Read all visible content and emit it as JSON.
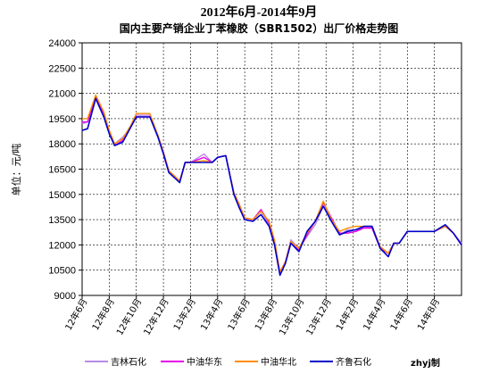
{
  "chart_data": {
    "type": "line",
    "title": "2012年6月-2014年9月",
    "subtitle": "国内主要产销企业丁苯橡胶（SBR1502）出厂价格走势图",
    "ylabel": "单位：元/吨",
    "xlabel": "",
    "ylim": [
      9000,
      24000
    ],
    "y_ticks": [
      24000,
      22500,
      21000,
      19500,
      18000,
      16500,
      15000,
      13500,
      12000,
      10500,
      9000
    ],
    "y_tick_labels": [
      "24000",
      "22500",
      "21000",
      "19500",
      "18000",
      "16500",
      "15000",
      "13500",
      "12000",
      "10500",
      "9000"
    ],
    "x_tick_labels": [
      "12年6月",
      "12年8月",
      "12年10月",
      "12年12月",
      "13年2月",
      "13年4月",
      "13年6月",
      "13年8月",
      "13年10月",
      "13年12月",
      "14年2月",
      "14年4月",
      "14年6月",
      "14年8月"
    ],
    "grid": true,
    "legend_position": "bottom",
    "watermark": "zhyj制",
    "series": [
      {
        "name": "吉林石化",
        "color": "#B88AE8",
        "x": [
          0,
          0.2,
          0.5,
          0.8,
          1.0,
          1.2,
          1.5,
          1.8,
          2.0,
          2.2,
          2.5,
          2.8,
          3.0,
          3.2,
          3.6,
          3.8,
          4.0,
          4.5,
          4.8,
          5.0,
          5.3,
          5.6,
          5.8,
          6.0,
          6.3,
          6.6,
          6.9,
          7.1,
          7.3,
          7.5,
          7.7,
          8.0,
          8.3,
          8.6,
          8.9,
          9.2,
          9.5,
          9.8,
          10.1,
          10.4,
          10.7,
          11.0,
          11.3,
          11.5,
          11.7,
          12.0,
          12.3,
          12.6,
          13.0,
          13.4,
          13.7,
          14.0
        ],
        "values": [
          19200,
          19300,
          20700,
          19800,
          18800,
          18000,
          18400,
          19000,
          19700,
          19700,
          19700,
          18400,
          17500,
          16400,
          15800,
          16900,
          16900,
          17400,
          16900,
          17200,
          17300,
          15000,
          14300,
          13600,
          13500,
          14000,
          13200,
          12100,
          10400,
          11000,
          12300,
          11800,
          12500,
          13200,
          14300,
          13500,
          12600,
          12900,
          12900,
          13000,
          13000,
          11800,
          11500,
          12100,
          12100,
          12800,
          12800,
          12800,
          12800,
          13100,
          12700,
          12100
        ]
      },
      {
        "name": "中油华东",
        "color": "#E600E6",
        "x": [
          0,
          0.2,
          0.5,
          0.8,
          1.0,
          1.2,
          1.5,
          1.8,
          2.0,
          2.2,
          2.5,
          2.8,
          3.0,
          3.2,
          3.6,
          3.8,
          4.0,
          4.5,
          4.8,
          5.0,
          5.3,
          5.6,
          5.8,
          6.0,
          6.3,
          6.6,
          6.9,
          7.1,
          7.3,
          7.5,
          7.7,
          8.0,
          8.3,
          8.6,
          8.9,
          9.2,
          9.5,
          9.8,
          10.1,
          10.4,
          10.7,
          11.0,
          11.3,
          11.5,
          11.7,
          12.0,
          12.3,
          12.6,
          13.0,
          13.4,
          13.7,
          14.0
        ],
        "values": [
          19300,
          19300,
          20800,
          19800,
          18700,
          17900,
          18200,
          19000,
          19600,
          19600,
          19600,
          18500,
          17500,
          16400,
          15800,
          16900,
          16900,
          17200,
          16900,
          17200,
          17300,
          15100,
          14400,
          13600,
          13500,
          14100,
          13300,
          12200,
          10400,
          11000,
          12100,
          11700,
          12600,
          13400,
          14500,
          13600,
          12700,
          12700,
          12800,
          13000,
          13000,
          11800,
          11500,
          12100,
          12100,
          12800,
          12800,
          12800,
          12800,
          13100,
          12700,
          12000
        ]
      },
      {
        "name": "中油华北",
        "color": "#FF8C00",
        "x": [
          0,
          0.2,
          0.5,
          0.8,
          1.0,
          1.2,
          1.5,
          1.8,
          2.0,
          2.2,
          2.5,
          2.8,
          3.0,
          3.2,
          3.6,
          3.8,
          4.0,
          4.5,
          4.8,
          5.0,
          5.3,
          5.6,
          5.8,
          6.0,
          6.3,
          6.6,
          6.9,
          7.1,
          7.3,
          7.5,
          7.7,
          8.0,
          8.3,
          8.6,
          8.9,
          9.2,
          9.5,
          9.8,
          10.1,
          10.4,
          10.7,
          11.0,
          11.3,
          11.5,
          11.7,
          12.0,
          12.3,
          12.6,
          13.0,
          13.4,
          13.7,
          14.0
        ],
        "values": [
          19500,
          19500,
          20900,
          19900,
          18800,
          18000,
          18300,
          19100,
          19800,
          19800,
          19800,
          18500,
          17500,
          16400,
          15800,
          16900,
          16900,
          17000,
          16900,
          17200,
          17300,
          15100,
          14400,
          13600,
          13500,
          14000,
          13400,
          12300,
          10400,
          11000,
          12200,
          11800,
          12700,
          13400,
          14600,
          13500,
          12800,
          13000,
          13100,
          13100,
          13100,
          11900,
          11500,
          12100,
          12100,
          12800,
          12800,
          12800,
          12800,
          13100,
          12700,
          12000
        ]
      },
      {
        "name": "齐鲁石化",
        "color": "#0000CC",
        "x": [
          0,
          0.2,
          0.5,
          0.8,
          1.0,
          1.2,
          1.5,
          1.8,
          2.0,
          2.2,
          2.5,
          2.8,
          3.0,
          3.2,
          3.6,
          3.8,
          4.0,
          4.5,
          4.8,
          5.0,
          5.3,
          5.6,
          5.8,
          6.0,
          6.3,
          6.6,
          6.9,
          7.1,
          7.3,
          7.5,
          7.7,
          8.0,
          8.3,
          8.6,
          8.9,
          9.2,
          9.5,
          9.8,
          10.1,
          10.4,
          10.7,
          11.0,
          11.3,
          11.5,
          11.7,
          12.0,
          12.3,
          12.6,
          13.0,
          13.4,
          13.7,
          14.0
        ],
        "values": [
          18800,
          18900,
          20700,
          19600,
          18600,
          17900,
          18100,
          19000,
          19600,
          19600,
          19600,
          18400,
          17400,
          16300,
          15700,
          16900,
          16900,
          16900,
          16900,
          17200,
          17300,
          15000,
          14200,
          13500,
          13400,
          13800,
          13100,
          12000,
          10200,
          10900,
          12100,
          11600,
          12800,
          13400,
          14300,
          13400,
          12600,
          12800,
          12900,
          13100,
          13100,
          11800,
          11300,
          12100,
          12100,
          12800,
          12800,
          12800,
          12800,
          13200,
          12700,
          12000
        ]
      }
    ]
  }
}
